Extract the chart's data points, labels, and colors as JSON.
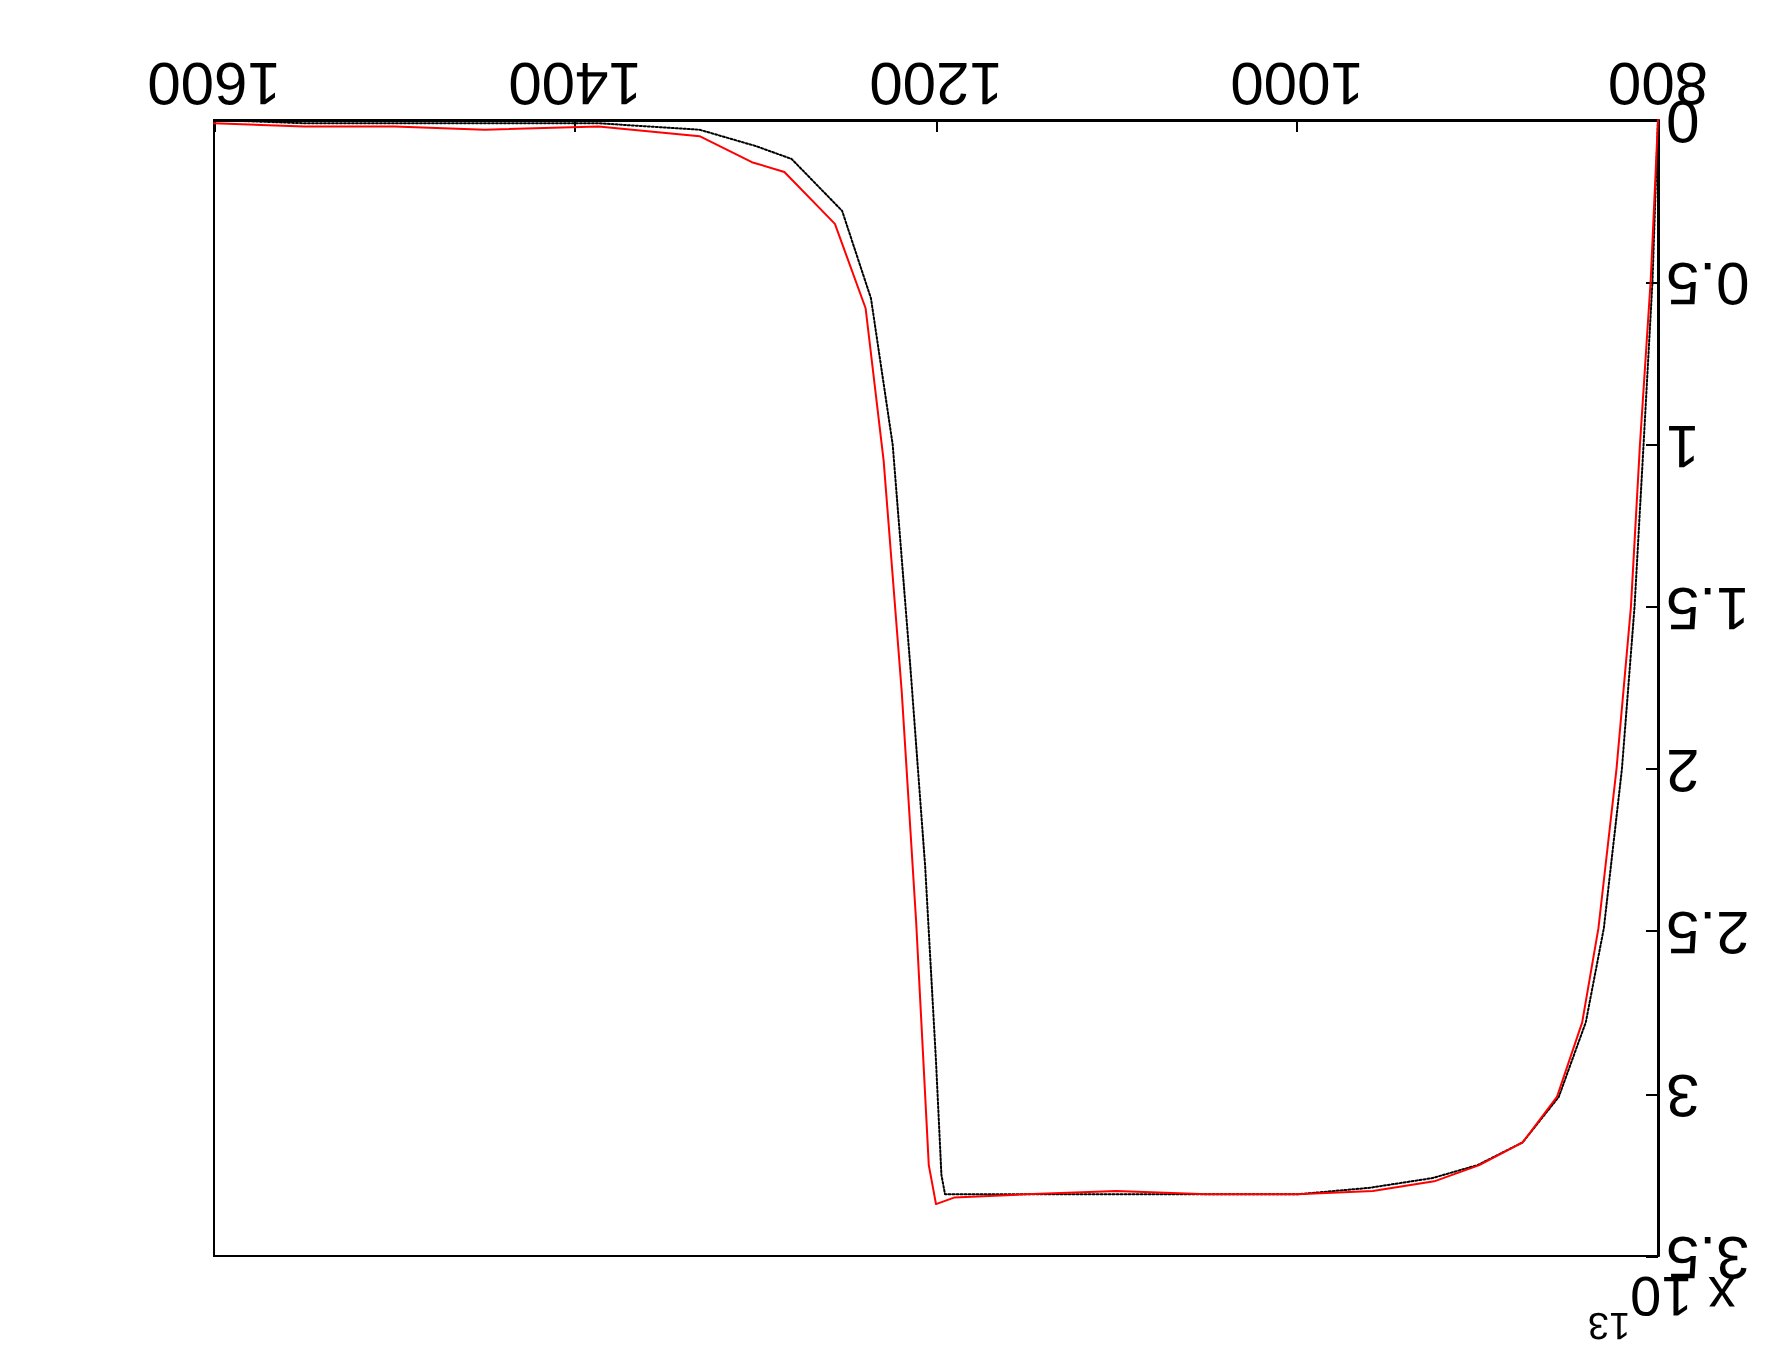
{
  "chart_data": {
    "type": "line",
    "xlim": [
      1600,
      800
    ],
    "xticks": [
      800,
      1000,
      1200,
      1400,
      1600
    ],
    "ylim": [
      3.5,
      0
    ],
    "yticks": [
      0,
      0.5,
      1,
      1.5,
      2,
      2.5,
      3,
      3.5
    ],
    "annotations": [
      "x 10$^{13}$"
    ],
    "grid": false,
    "marker": "none",
    "series": [
      {
        "color": "#ff0000",
        "line_style": "solid",
        "x": [
          800,
          804,
          810,
          815,
          823,
          833,
          842,
          856,
          875,
          899,
          924,
          958,
          1000,
          1050,
          1100,
          1150,
          1190,
          1200,
          1204,
          1211,
          1219,
          1229,
          1239,
          1256,
          1284,
          1302,
          1331,
          1387,
          1450,
          1500,
          1550,
          1600
        ],
        "values": [
          0,
          0.49,
          1.0,
          1.5,
          2.0,
          2.49,
          2.78,
          3.01,
          3.15,
          3.22,
          3.27,
          3.3,
          3.31,
          3.31,
          3.3,
          3.31,
          3.32,
          3.34,
          3.22,
          2.47,
          1.76,
          1.05,
          0.58,
          0.32,
          0.16,
          0.13,
          0.05,
          0.02,
          0.03,
          0.02,
          0.02,
          0.01
        ]
      },
      {
        "color": "#000000",
        "line_style": "dotted",
        "x": [
          800,
          803,
          808,
          813,
          820,
          830,
          840,
          855,
          875,
          900,
          925,
          960,
          1000,
          1050,
          1100,
          1150,
          1195,
          1197,
          1200,
          1206,
          1214,
          1224,
          1236,
          1252,
          1280,
          1300,
          1331,
          1387,
          1450,
          1500,
          1550,
          1600
        ],
        "values": [
          0,
          0.49,
          1.0,
          1.5,
          2.0,
          2.49,
          2.78,
          3.01,
          3.15,
          3.22,
          3.26,
          3.29,
          3.31,
          3.31,
          3.31,
          3.31,
          3.31,
          3.25,
          2.9,
          2.3,
          1.7,
          1.0,
          0.55,
          0.28,
          0.12,
          0.08,
          0.03,
          0.01,
          0.01,
          0.01,
          0.01,
          0.0
        ]
      }
    ]
  }
}
